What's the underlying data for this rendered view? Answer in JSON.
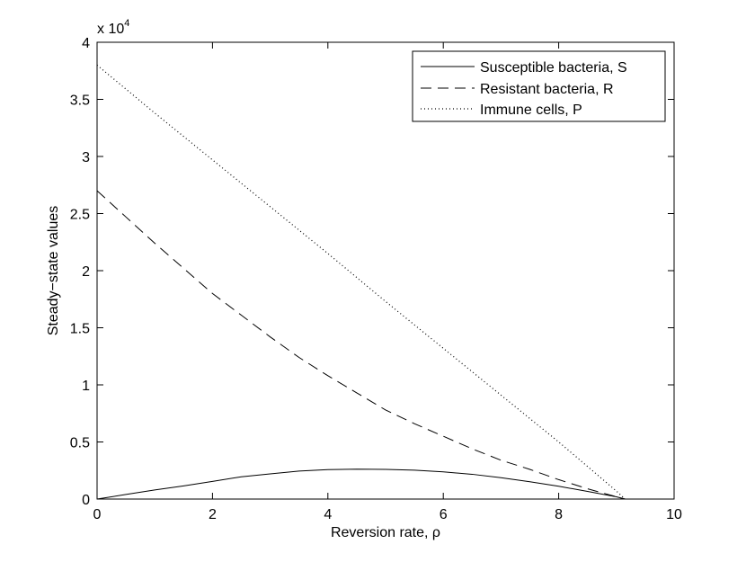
{
  "chart_data": {
    "type": "line",
    "xlabel": "Reversion rate, ρ",
    "ylabel": "Steady−state values",
    "y_multiplier": {
      "base": "x 10",
      "exponent": "4"
    },
    "xlim": [
      0,
      10
    ],
    "ylim": [
      0,
      40000
    ],
    "x_ticks": [
      0,
      2,
      4,
      6,
      8,
      10
    ],
    "x_tick_labels": [
      "0",
      "2",
      "4",
      "6",
      "8",
      "10"
    ],
    "y_ticks": [
      0,
      5000,
      10000,
      15000,
      20000,
      25000,
      30000,
      35000,
      40000
    ],
    "y_tick_labels": [
      "0",
      "0.5",
      "1",
      "1.5",
      "2",
      "2.5",
      "3",
      "3.5",
      "4"
    ],
    "grid": false,
    "legend_position": "top-right",
    "series": [
      {
        "name": "Susceptible bacteria, S",
        "style": "solid",
        "x": [
          0,
          0.5,
          1,
          1.5,
          2,
          2.5,
          3,
          3.5,
          4,
          4.5,
          5,
          5.5,
          6,
          6.5,
          7,
          7.5,
          8,
          8.5,
          9,
          9.15
        ],
        "values": [
          0,
          400,
          800,
          1150,
          1550,
          1950,
          2200,
          2450,
          2580,
          2620,
          2600,
          2530,
          2380,
          2170,
          1870,
          1520,
          1120,
          670,
          200,
          0
        ]
      },
      {
        "name": "Resistant bacteria, R",
        "style": "dashed",
        "x": [
          0,
          0.5,
          1,
          1.5,
          2,
          2.5,
          3,
          3.5,
          4,
          4.5,
          5,
          5.5,
          6,
          6.5,
          7,
          7.5,
          8,
          8.5,
          9,
          9.15
        ],
        "values": [
          27000,
          24700,
          22400,
          20200,
          18000,
          16100,
          14200,
          12400,
          10800,
          9300,
          7800,
          6600,
          5500,
          4400,
          3400,
          2600,
          1700,
          900,
          200,
          0
        ]
      },
      {
        "name": "Immune cells, P",
        "style": "dotted",
        "x": [
          0,
          1,
          2,
          3,
          4,
          5,
          6,
          7,
          8,
          9,
          9.15
        ],
        "values": [
          38000,
          33800,
          29700,
          25600,
          21500,
          17300,
          13200,
          9100,
          5000,
          700,
          0
        ]
      }
    ]
  },
  "colors": {
    "line": "#000000",
    "background": "#ffffff",
    "axes_frame": "#000000"
  }
}
